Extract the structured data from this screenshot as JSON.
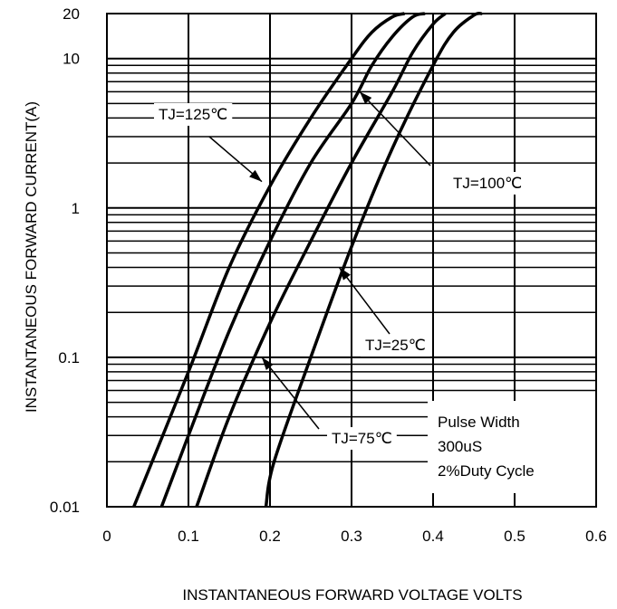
{
  "chart_data": {
    "type": "line",
    "xlabel": "INSTANTANEOUS FORWARD VOLTAGE VOLTS",
    "ylabel": "INSTANTANEOUS FORWARD CURRENT(A)",
    "xlim": [
      0,
      0.6
    ],
    "ylim": [
      0.01,
      20
    ],
    "y_scale": "log",
    "grid": true,
    "x_ticks": [
      "0",
      "0.1",
      "0.2",
      "0.3",
      "0.4",
      "0.5",
      "0.6"
    ],
    "y_ticks": [
      "20",
      "10",
      "1",
      "0.1",
      "0.01"
    ],
    "series": [
      {
        "name": "TJ=125℃",
        "x": [
          0.033,
          0.1,
          0.15,
          0.2,
          0.25,
          0.3,
          0.325,
          0.35,
          0.365
        ],
        "y": [
          0.01,
          0.08,
          0.4,
          1.4,
          4.0,
          10.0,
          15.0,
          19.0,
          20.0
        ]
      },
      {
        "name": "TJ=100℃",
        "x": [
          0.067,
          0.1,
          0.15,
          0.2,
          0.25,
          0.3,
          0.325,
          0.35,
          0.375,
          0.39
        ],
        "y": [
          0.01,
          0.03,
          0.15,
          0.6,
          2.0,
          5.0,
          9.0,
          14.0,
          19.0,
          20.0
        ]
      },
      {
        "name": "TJ=75℃",
        "x": [
          0.11,
          0.15,
          0.2,
          0.25,
          0.3,
          0.35,
          0.375,
          0.4,
          0.415
        ],
        "y": [
          0.01,
          0.04,
          0.17,
          0.6,
          2.0,
          6.0,
          11.0,
          17.0,
          20.0
        ]
      },
      {
        "name": "TJ=25℃",
        "x": [
          0.195,
          0.205,
          0.25,
          0.3,
          0.35,
          0.4,
          0.425,
          0.45,
          0.46
        ],
        "y": [
          0.01,
          0.02,
          0.1,
          0.55,
          2.5,
          9.0,
          15.0,
          19.5,
          20.0
        ]
      }
    ],
    "annotations": [
      {
        "text": "TJ=125℃",
        "pointer": [
          0.19,
          1.5
        ]
      },
      {
        "text": "TJ=100℃",
        "pointer": [
          0.31,
          6.0
        ]
      },
      {
        "text": "TJ=25℃",
        "pointer": [
          0.285,
          0.4
        ]
      },
      {
        "text": "TJ=75℃",
        "pointer": [
          0.19,
          0.1
        ]
      }
    ],
    "note": [
      "Pulse Width",
      "300uS",
      "2%Duty Cycle"
    ]
  }
}
